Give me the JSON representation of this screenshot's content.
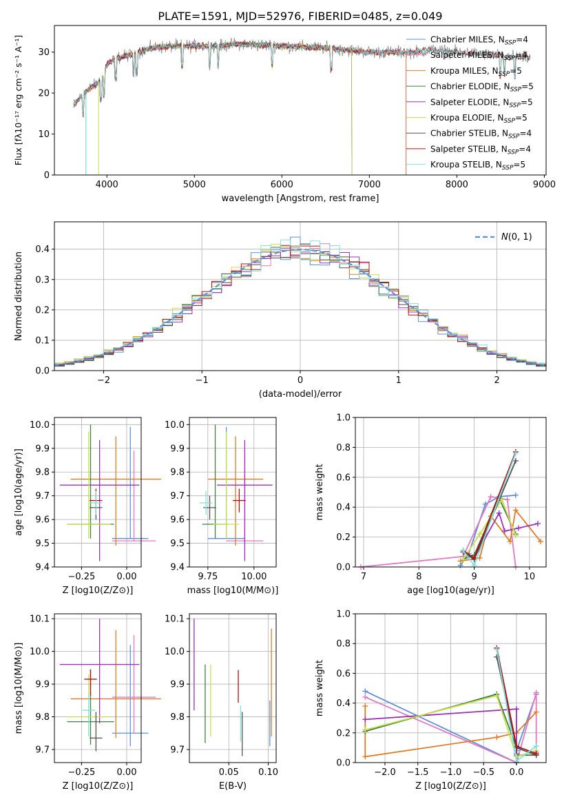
{
  "figure_title": "PLATE=1591, MJD=52976, FIBERID=0485, z=0.049",
  "colors": {
    "Chabrier MILES": "#5b8fd9",
    "Salpeter MILES": "#e377c2",
    "Kroupa MILES": "#e07b24",
    "Chabrier ELODIE": "#3f7f3f",
    "Salpeter ELODIE": "#9b30b8",
    "Kroupa ELODIE": "#c5e04a",
    "Chabrier STELIB": "#505050",
    "Salpeter STELIB": "#b01010",
    "Kroupa STELIB": "#7fe0e0",
    "gaussian": "#5b8fd9",
    "grid": "#b0b0b0"
  },
  "chart_data": [
    {
      "id": "spectrum",
      "type": "line",
      "title": "PLATE=1591, MJD=52976, FIBERID=0485, z=0.049",
      "xlabel": "wavelength [Angstrom, rest frame]",
      "ylabel": "Flux [fλ10⁻¹⁷ erg cm⁻² s⁻¹ A⁻¹]",
      "xlim": [
        3400,
        9020
      ],
      "ylim": [
        0,
        36.5
      ],
      "xticks": [
        4000,
        5000,
        6000,
        7000,
        8000,
        9000
      ],
      "yticks": [
        0,
        10,
        20,
        30
      ],
      "grid": false,
      "legend_position": "right",
      "legend": [
        {
          "name": "Chabrier MILES",
          "nssp": "4"
        },
        {
          "name": "Salpeter MILES",
          "nssp": "4"
        },
        {
          "name": "Kroupa MILES",
          "nssp": "5"
        },
        {
          "name": "Chabrier ELODIE",
          "nssp": "5"
        },
        {
          "name": "Salpeter ELODIE",
          "nssp": "5"
        },
        {
          "name": "Kroupa ELODIE",
          "nssp": "5"
        },
        {
          "name": "Chabrier STELIB",
          "nssp": "4"
        },
        {
          "name": "Salpeter STELIB",
          "nssp": "4"
        },
        {
          "name": "Kroupa STELIB",
          "nssp": "5"
        }
      ],
      "continuum": [
        [
          3620,
          17
        ],
        [
          3700,
          19
        ],
        [
          3800,
          21
        ],
        [
          3900,
          22.5
        ],
        [
          3960,
          24
        ],
        [
          4000,
          27
        ],
        [
          4100,
          28.5
        ],
        [
          4300,
          29.5
        ],
        [
          4500,
          31
        ],
        [
          4800,
          31.5
        ],
        [
          5000,
          31.5
        ],
        [
          5300,
          31.5
        ],
        [
          5500,
          32
        ],
        [
          6000,
          31.5
        ],
        [
          6500,
          31
        ],
        [
          7000,
          30
        ],
        [
          7400,
          30
        ],
        [
          7500,
          30
        ],
        [
          7700,
          30.5
        ],
        [
          8000,
          30
        ],
        [
          8300,
          29.5
        ],
        [
          8600,
          29
        ],
        [
          8840,
          28.5
        ]
      ],
      "model_ranges": {
        "Chabrier MILES": [
          3620,
          7420
        ],
        "Salpeter MILES": [
          3620,
          7420
        ],
        "Kroupa MILES": [
          3620,
          7420
        ],
        "Chabrier ELODIE": [
          3620,
          6800
        ],
        "Salpeter ELODIE": [
          3620,
          6800
        ],
        "Kroupa ELODIE": [
          3620,
          6800
        ],
        "Chabrier STELIB": [
          3620,
          8840
        ],
        "Salpeter STELIB": [
          3620,
          8840
        ],
        "Kroupa STELIB": [
          3620,
          8840
        ]
      }
    },
    {
      "id": "residuals",
      "type": "histogram",
      "xlabel": "(data-model)/error",
      "ylabel": "Normed distribution",
      "xlim": [
        -2.5,
        2.5
      ],
      "ylim": [
        0,
        0.49
      ],
      "xticks": [
        -2,
        -1,
        0,
        1,
        2
      ],
      "yticks": [
        0.0,
        0.1,
        0.2,
        0.3,
        0.4
      ],
      "grid": true,
      "bin_width": 0.1,
      "legend_position": "top-right",
      "reference": {
        "name": "N(0,1)",
        "mu": 0,
        "sigma": 1
      }
    },
    {
      "id": "age_vs_Z",
      "type": "errorbar",
      "xlabel": "Z [log10(Z/Z⊙)]",
      "ylabel": "age [log10(age/yr)]",
      "xlim": [
        -0.4,
        0.08
      ],
      "ylim": [
        9.4,
        10.03
      ],
      "xticks": [
        -0.25,
        0.0
      ],
      "yticks": [
        9.4,
        9.5,
        9.6,
        9.7,
        9.8,
        9.9,
        10.0
      ],
      "grid": true,
      "points": [
        {
          "model": "Chabrier MILES",
          "x": 0.02,
          "xerr": 0.1,
          "y": 9.52,
          "yerr": [
            0.0,
            0.47
          ]
        },
        {
          "model": "Salpeter MILES",
          "x": 0.04,
          "xerr": 0.12,
          "y": 9.51,
          "yerr": [
            0.0,
            0.38
          ]
        },
        {
          "model": "Kroupa MILES",
          "x": -0.06,
          "xerr": 0.25,
          "y": 9.77,
          "yerr": [
            0.28,
            0.18
          ]
        },
        {
          "model": "Chabrier ELODIE",
          "x": -0.2,
          "xerr": 0.13,
          "y": 9.58,
          "yerr": [
            0.06,
            0.42
          ]
        },
        {
          "model": "Salpeter ELODIE",
          "x": -0.15,
          "xerr": 0.22,
          "y": 9.745,
          "yerr": [
            0.32,
            0.19
          ]
        },
        {
          "model": "Kroupa ELODIE",
          "x": -0.21,
          "xerr": 0.12,
          "y": 9.58,
          "yerr": [
            0.06,
            0.39
          ]
        },
        {
          "model": "Chabrier STELIB",
          "x": -0.17,
          "xerr": 0.035,
          "y": 9.65,
          "yerr": [
            0.05,
            0.05
          ]
        },
        {
          "model": "Salpeter STELIB",
          "x": -0.17,
          "xerr": 0.035,
          "y": 9.68,
          "yerr": [
            0.05,
            0.05
          ]
        },
        {
          "model": "Kroupa STELIB",
          "x": -0.17,
          "xerr": 0.035,
          "y": 9.67,
          "yerr": [
            0.05,
            0.05
          ]
        }
      ]
    },
    {
      "id": "age_vs_mass",
      "type": "errorbar",
      "xlabel": "mass [log10(M/M⊙)]",
      "ylabel": "",
      "xlim": [
        9.65,
        10.12
      ],
      "ylim": [
        9.4,
        10.03
      ],
      "xticks": [
        9.75,
        10.0
      ],
      "yticks": [
        9.4,
        9.5,
        9.6,
        9.7,
        9.8,
        9.9,
        10.0
      ],
      "grid": true,
      "points": [
        {
          "model": "Chabrier MILES",
          "x": 9.85,
          "xerr": 0.1,
          "y": 9.52,
          "yerr": [
            0.0,
            0.47
          ]
        },
        {
          "model": "Salpeter MILES",
          "x": 9.95,
          "xerr": 0.1,
          "y": 9.51,
          "yerr": [
            0.0,
            0.38
          ]
        },
        {
          "model": "Kroupa MILES",
          "x": 9.9,
          "xerr": 0.15,
          "y": 9.77,
          "yerr": [
            0.28,
            0.18
          ]
        },
        {
          "model": "Chabrier ELODIE",
          "x": 9.79,
          "xerr": 0.07,
          "y": 9.58,
          "yerr": [
            0.06,
            0.42
          ]
        },
        {
          "model": "Salpeter ELODIE",
          "x": 9.95,
          "xerr": 0.15,
          "y": 9.745,
          "yerr": [
            0.32,
            0.19
          ]
        },
        {
          "model": "Kroupa ELODIE",
          "x": 9.85,
          "xerr": 0.07,
          "y": 9.58,
          "yerr": [
            0.06,
            0.39
          ]
        },
        {
          "model": "Chabrier STELIB",
          "x": 9.76,
          "xerr": 0.035,
          "y": 9.65,
          "yerr": [
            0.05,
            0.05
          ]
        },
        {
          "model": "Salpeter STELIB",
          "x": 9.92,
          "xerr": 0.035,
          "y": 9.68,
          "yerr": [
            0.05,
            0.05
          ]
        },
        {
          "model": "Kroupa STELIB",
          "x": 9.74,
          "xerr": 0.035,
          "y": 9.67,
          "yerr": [
            0.05,
            0.05
          ]
        }
      ]
    },
    {
      "id": "mass_weight_vs_age",
      "type": "line",
      "xlabel": "age [log10(age/yr)]",
      "ylabel": "mass weight",
      "xlim": [
        6.85,
        10.3
      ],
      "ylim": [
        0,
        1
      ],
      "xticks": [
        7,
        8,
        9,
        10
      ],
      "yticks": [
        0.0,
        0.2,
        0.4,
        0.6,
        0.8,
        1.0
      ],
      "grid": true,
      "series": [
        {
          "model": "Chabrier MILES",
          "x": [
            8.75,
            8.9,
            9.2,
            9.45,
            9.75
          ],
          "y": [
            0.01,
            0.09,
            0.42,
            0.47,
            0.48
          ]
        },
        {
          "model": "Salpeter MILES",
          "x": [
            6.95,
            8.8,
            9.3,
            9.6,
            9.75
          ],
          "y": [
            0.0,
            0.07,
            0.47,
            0.45,
            0.0
          ]
        },
        {
          "model": "Kroupa MILES",
          "x": [
            8.75,
            9.1,
            9.3,
            9.65,
            9.75,
            10.2
          ],
          "y": [
            0.04,
            0.06,
            0.34,
            0.17,
            0.38,
            0.17
          ]
        },
        {
          "model": "Chabrier ELODIE",
          "x": [
            8.8,
            9.0,
            9.45,
            9.75
          ],
          "y": [
            0.05,
            0.08,
            0.46,
            0.22
          ]
        },
        {
          "model": "Salpeter ELODIE",
          "x": [
            8.8,
            9.0,
            9.45,
            9.55,
            9.8,
            10.15
          ],
          "y": [
            0.1,
            0.06,
            0.36,
            0.24,
            0.26,
            0.29
          ]
        },
        {
          "model": "Kroupa ELODIE",
          "x": [
            8.8,
            9.1,
            9.5,
            9.75
          ],
          "y": [
            0.05,
            0.22,
            0.45,
            0.21
          ]
        },
        {
          "model": "Chabrier STELIB",
          "x": [
            8.8,
            9.0,
            9.75
          ],
          "y": [
            0.1,
            0.05,
            0.71
          ]
        },
        {
          "model": "Salpeter STELIB",
          "x": [
            8.8,
            9.0,
            9.75
          ],
          "y": [
            0.11,
            0.06,
            0.77
          ]
        },
        {
          "model": "Kroupa STELIB",
          "x": [
            8.8,
            9.0,
            9.75
          ],
          "y": [
            0.11,
            0.01,
            0.76
          ]
        }
      ]
    },
    {
      "id": "mass_vs_Z",
      "type": "errorbar",
      "xlabel": "Z [log10(Z/Z⊙)]",
      "ylabel": "mass [log10(M/M⊙)]",
      "xlim": [
        -0.4,
        0.08
      ],
      "ylim": [
        9.66,
        10.115
      ],
      "xticks": [
        -0.25,
        0.0
      ],
      "yticks": [
        9.7,
        9.8,
        9.9,
        10.0,
        10.1
      ],
      "grid": true,
      "points": [
        {
          "model": "Chabrier MILES",
          "x": 0.02,
          "xerr": 0.1,
          "y": 9.75,
          "yerr": [
            0.04,
            0.27
          ]
        },
        {
          "model": "Salpeter MILES",
          "x": 0.04,
          "xerr": 0.12,
          "y": 9.86,
          "yerr": [
            0.11,
            0.19
          ]
        },
        {
          "model": "Kroupa MILES",
          "x": -0.06,
          "xerr": 0.25,
          "y": 9.855,
          "yerr": [
            0.12,
            0.21
          ]
        },
        {
          "model": "Chabrier ELODIE",
          "x": -0.2,
          "xerr": 0.13,
          "y": 9.785,
          "yerr": [
            0.07,
            0.16
          ]
        },
        {
          "model": "Salpeter ELODIE",
          "x": -0.15,
          "xerr": 0.22,
          "y": 9.96,
          "yerr": [
            0.18,
            0.14
          ]
        },
        {
          "model": "Kroupa ELODIE",
          "x": -0.21,
          "xerr": 0.12,
          "y": 9.8,
          "yerr": [
            0.06,
            0.13
          ]
        },
        {
          "model": "Chabrier STELIB",
          "x": -0.17,
          "xerr": 0.035,
          "y": 9.735,
          "yerr": [
            0.04,
            0.08
          ]
        },
        {
          "model": "Salpeter STELIB",
          "x": -0.2,
          "xerr": 0.035,
          "y": 9.915,
          "yerr": [
            0.05,
            0.03
          ]
        },
        {
          "model": "Kroupa STELIB",
          "x": -0.21,
          "xerr": 0.035,
          "y": 9.82,
          "yerr": [
            0.08,
            0.05
          ]
        }
      ]
    },
    {
      "id": "mass_vs_ebv",
      "type": "errorbar",
      "xlabel": "E(B-V)",
      "ylabel": "",
      "xlim": [
        0.0,
        0.11
      ],
      "ylim": [
        9.66,
        10.115
      ],
      "xticks": [
        0.05,
        0.1
      ],
      "yticks": [
        9.7,
        9.8,
        9.9,
        10.0,
        10.1
      ],
      "grid": true,
      "points": [
        {
          "model": "Chabrier MILES",
          "x": 0.102,
          "y": 9.85,
          "yerr": [
            0.14,
            0.0
          ]
        },
        {
          "model": "Salpeter MILES",
          "x": 0.102,
          "y": 9.87,
          "yerr": [
            0.0,
            0.0
          ]
        },
        {
          "model": "Kroupa MILES",
          "x": 0.104,
          "y": 9.9,
          "yerr": [
            0.16,
            0.17
          ]
        },
        {
          "model": "Chabrier ELODIE",
          "x": 0.02,
          "y": 9.84,
          "yerr": [
            0.12,
            0.12
          ]
        },
        {
          "model": "Salpeter ELODIE",
          "x": 0.006,
          "y": 9.96,
          "yerr": [
            0.14,
            0.14
          ]
        },
        {
          "model": "Kroupa ELODIE",
          "x": 0.027,
          "y": 9.85,
          "yerr": [
            0.11,
            0.11
          ]
        },
        {
          "model": "Chabrier STELIB",
          "x": 0.067,
          "y": 9.745,
          "yerr": [
            0.065,
            0.07
          ]
        },
        {
          "model": "Salpeter STELIB",
          "x": 0.062,
          "y": 9.893,
          "yerr": [
            0.05,
            0.05
          ]
        },
        {
          "model": "Kroupa STELIB",
          "x": 0.065,
          "y": 9.78,
          "yerr": [
            0.055,
            0.055
          ]
        }
      ]
    },
    {
      "id": "mass_weight_vs_Z",
      "type": "line",
      "xlabel": "Z [log10(Z/Z⊙)]",
      "ylabel": "mass weight",
      "xlim": [
        -2.45,
        0.45
      ],
      "ylim": [
        0,
        1
      ],
      "xticks": [
        -2.0,
        -1.5,
        -1.0,
        -0.5,
        0.0
      ],
      "yticks": [
        0.0,
        0.2,
        0.4,
        0.6,
        0.8,
        1.0
      ],
      "grid": true,
      "series": [
        {
          "model": "Chabrier MILES",
          "x": [
            -2.3,
            0.0,
            0.0,
            0.3
          ],
          "y": [
            0.48,
            0.0,
            0.08,
            0.46
          ]
        },
        {
          "model": "Salpeter MILES",
          "x": [
            -2.3,
            0.0,
            0.3,
            0.3
          ],
          "y": [
            0.44,
            0.0,
            0.47,
            0.07
          ]
        },
        {
          "model": "Kroupa MILES",
          "x": [
            -2.3,
            -2.3,
            -0.3,
            0.0,
            0.3
          ],
          "y": [
            0.38,
            0.04,
            0.17,
            0.2,
            0.34
          ]
        },
        {
          "model": "Chabrier ELODIE",
          "x": [
            -2.3,
            -0.3,
            0.0,
            0.0,
            0.3
          ],
          "y": [
            0.21,
            0.46,
            0.1,
            0.05,
            0.05
          ]
        },
        {
          "model": "Salpeter ELODIE",
          "x": [
            -2.3,
            0.0,
            0.0
          ],
          "y": [
            0.29,
            0.36,
            0.06
          ]
        },
        {
          "model": "Kroupa ELODIE",
          "x": [
            -2.3,
            -0.3,
            0.0,
            0.3
          ],
          "y": [
            0.22,
            0.45,
            0.04,
            0.08
          ]
        },
        {
          "model": "Chabrier STELIB",
          "x": [
            -0.3,
            0.0,
            0.3
          ],
          "y": [
            0.71,
            0.1,
            0.05
          ]
        },
        {
          "model": "Salpeter STELIB",
          "x": [
            -0.3,
            0.0,
            0.3
          ],
          "y": [
            0.77,
            0.11,
            0.06
          ]
        },
        {
          "model": "Kroupa STELIB",
          "x": [
            -0.3,
            0.0,
            0.3
          ],
          "y": [
            0.76,
            0.01,
            0.11
          ]
        }
      ]
    }
  ]
}
